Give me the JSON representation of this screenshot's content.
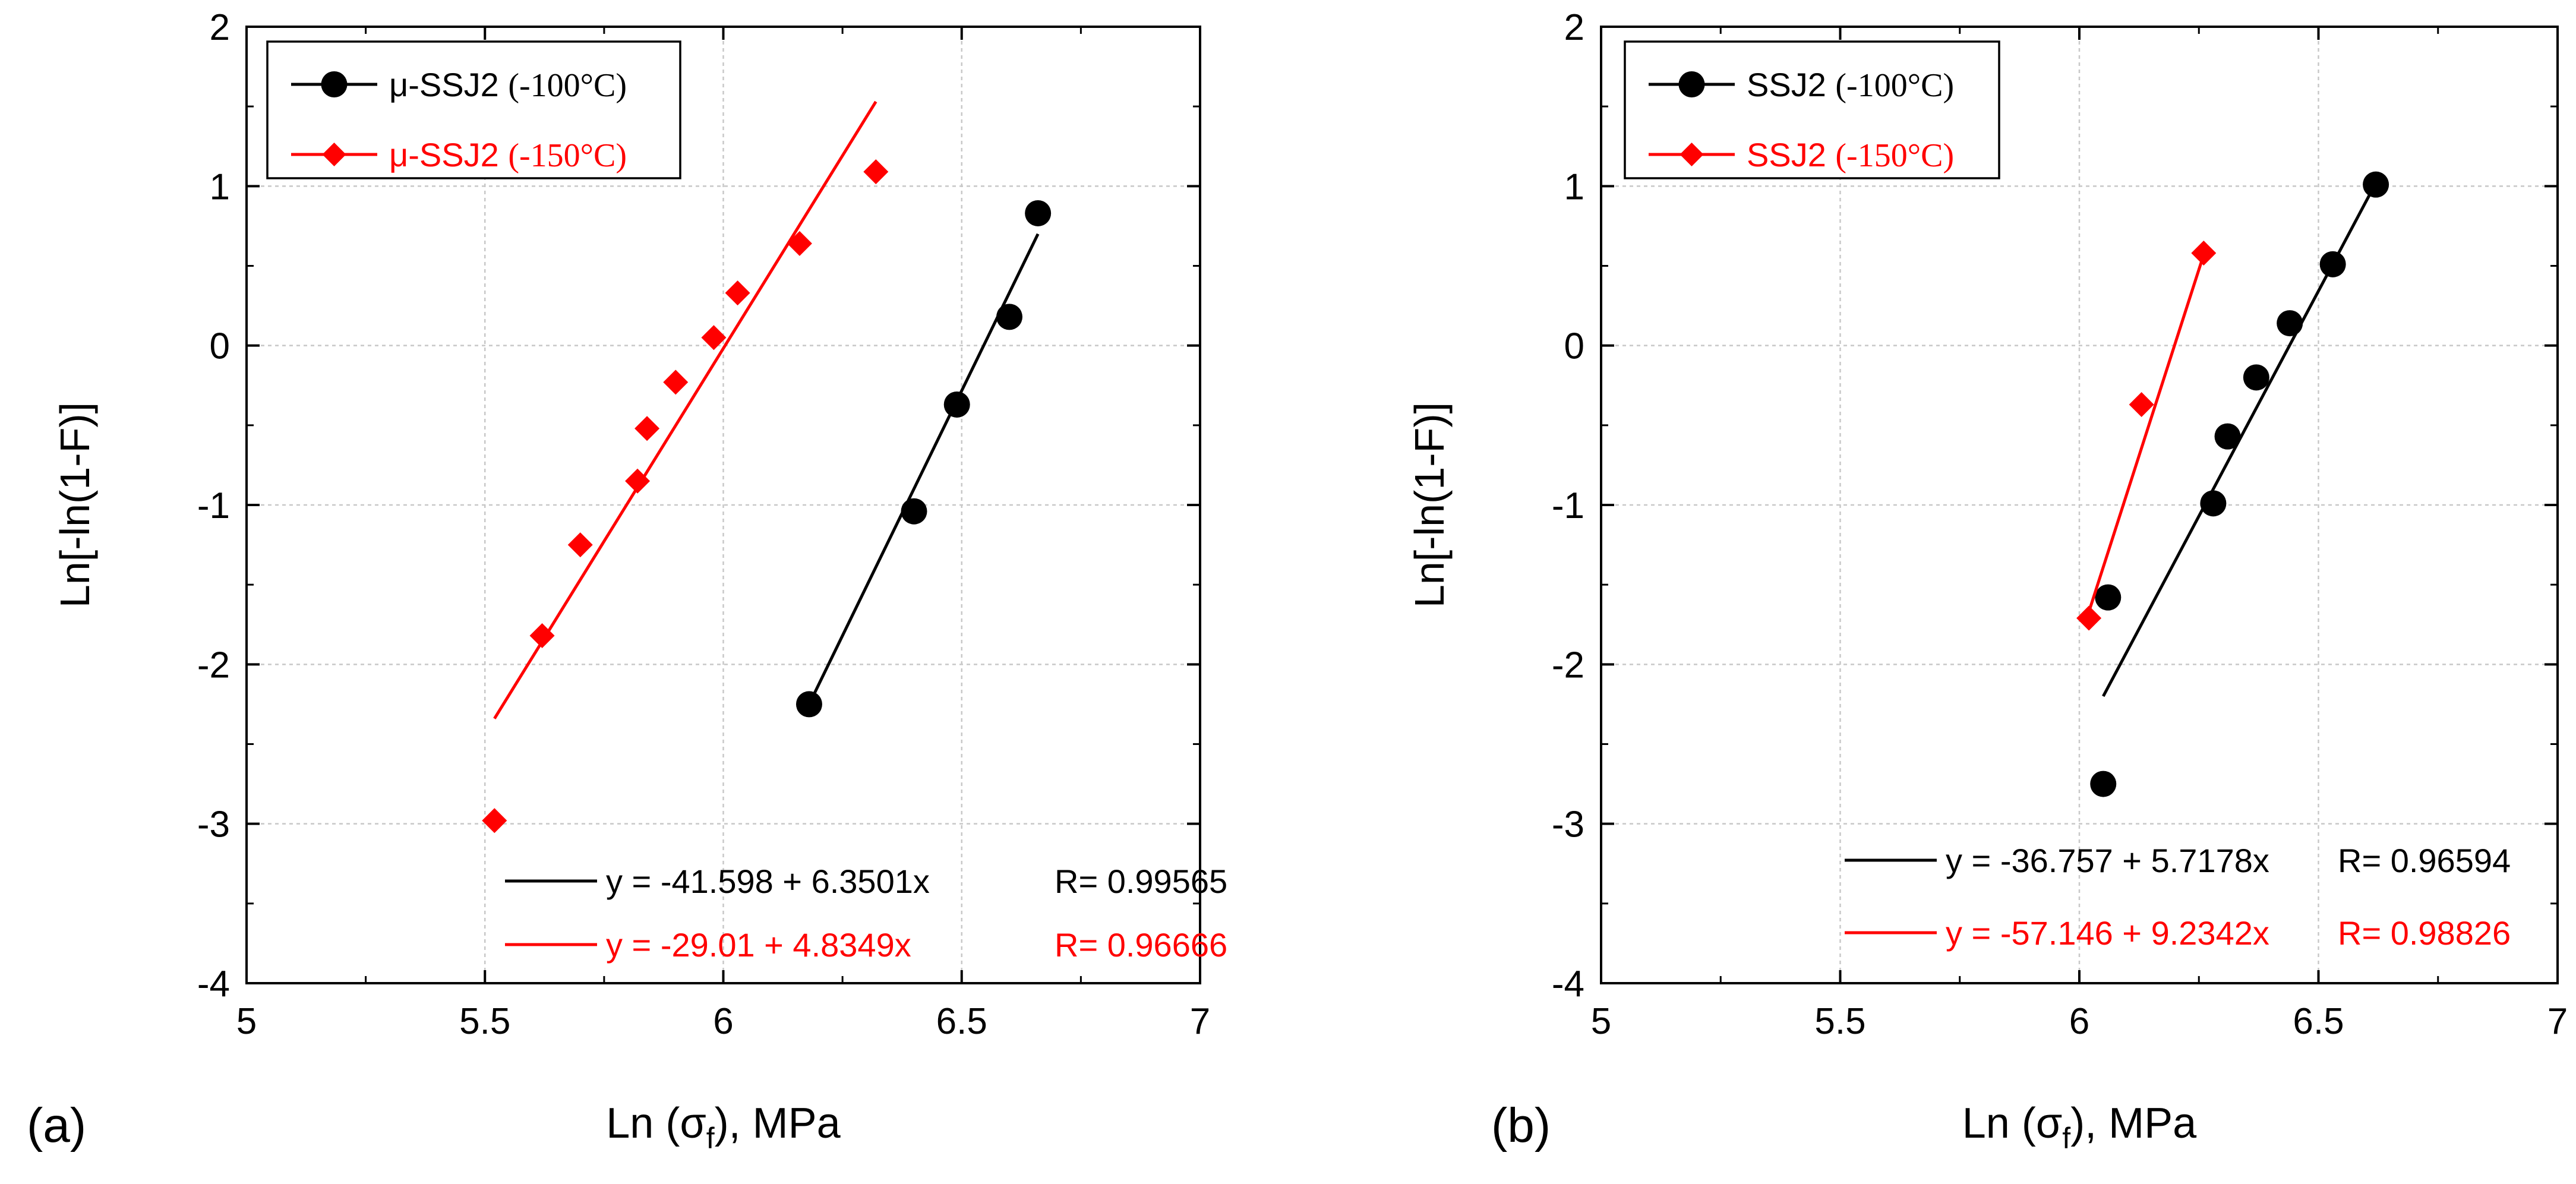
{
  "chart_data": [
    {
      "type": "scatter",
      "panel_label": "(a)",
      "xlabel_main": "Ln (σ",
      "xlabel_sub": "f",
      "xlabel_tail": "), MPa",
      "ylabel": "Ln[-ln(1-F)]",
      "xlim": [
        5,
        7
      ],
      "ylim": [
        -4,
        2
      ],
      "xticks": [
        5,
        5.5,
        6,
        6.5,
        7
      ],
      "xtick_labels": [
        "5",
        "5.5",
        "6",
        "6.5",
        "7"
      ],
      "yticks": [
        -4,
        -3,
        -2,
        -1,
        0,
        1,
        2
      ],
      "ytick_labels": [
        "-4",
        "-3",
        "-2",
        "-1",
        "0",
        "1",
        "2"
      ],
      "grid": true,
      "legend_position": "top-left",
      "series": [
        {
          "name_prefix": "μ-SSJ2",
          "name_suffix": "(-100°C)",
          "color": "#000000",
          "marker": "circle",
          "x": [
            6.18,
            6.4,
            6.49,
            6.6,
            6.66
          ],
          "y": [
            -2.25,
            -1.04,
            -0.37,
            0.18,
            0.83
          ],
          "fit_x": [
            6.18,
            6.66
          ],
          "fit_y": [
            -2.25,
            0.7
          ],
          "equation": "y = -41.598 + 6.3501x",
          "r_value": "R= 0.99565"
        },
        {
          "name_prefix": "μ-SSJ2",
          "name_suffix": "(-150°C)",
          "color": "#ff0000",
          "marker": "diamond",
          "x": [
            5.52,
            5.62,
            5.7,
            5.82,
            5.84,
            5.9,
            5.98,
            6.03,
            6.16,
            6.32
          ],
          "y": [
            -2.98,
            -1.82,
            -1.25,
            -0.85,
            -0.52,
            -0.23,
            0.05,
            0.33,
            0.64,
            1.09
          ],
          "fit_x": [
            5.52,
            6.32
          ],
          "fit_y": [
            -2.34,
            1.53
          ],
          "equation": "y = -29.01 + 4.8349x",
          "r_value": "R= 0.96666"
        }
      ]
    },
    {
      "type": "scatter",
      "panel_label": "(b)",
      "xlabel_main": "Ln (σ",
      "xlabel_sub": "f",
      "xlabel_tail": "), MPa",
      "ylabel": "Ln[-ln(1-F)]",
      "xlim": [
        5,
        7
      ],
      "ylim": [
        -4,
        2
      ],
      "xticks": [
        5,
        5.5,
        6,
        6.5,
        7
      ],
      "xtick_labels": [
        "5",
        "5.5",
        "6",
        "6.5",
        "7"
      ],
      "yticks": [
        -4,
        -3,
        -2,
        -1,
        0,
        1,
        2
      ],
      "ytick_labels": [
        "-4",
        "-3",
        "-2",
        "-1",
        "0",
        "1",
        "2"
      ],
      "grid": true,
      "legend_position": "top-left",
      "series": [
        {
          "name_prefix": "SSJ2",
          "name_suffix": "(-100°C)",
          "color": "#000000",
          "marker": "circle",
          "x": [
            6.05,
            6.06,
            6.28,
            6.31,
            6.37,
            6.44,
            6.53,
            6.62
          ],
          "y": [
            -2.75,
            -1.58,
            -0.99,
            -0.57,
            -0.2,
            0.14,
            0.51,
            1.01
          ],
          "fit_x": [
            6.05,
            6.62
          ],
          "fit_y": [
            -2.2,
            1.02
          ],
          "equation": "y = -36.757 + 5.7178x",
          "r_value": "R= 0.96594"
        },
        {
          "name_prefix": "SSJ2",
          "name_suffix": "(-150°C)",
          "color": "#ff0000",
          "marker": "diamond",
          "x": [
            6.02,
            6.13,
            6.26
          ],
          "y": [
            -1.71,
            -0.37,
            0.58
          ],
          "fit_x": [
            6.02,
            6.26
          ],
          "fit_y": [
            -1.67,
            0.57
          ],
          "equation": "y = -57.146 + 9.2342x",
          "r_value": "R= 0.98826"
        }
      ]
    }
  ]
}
